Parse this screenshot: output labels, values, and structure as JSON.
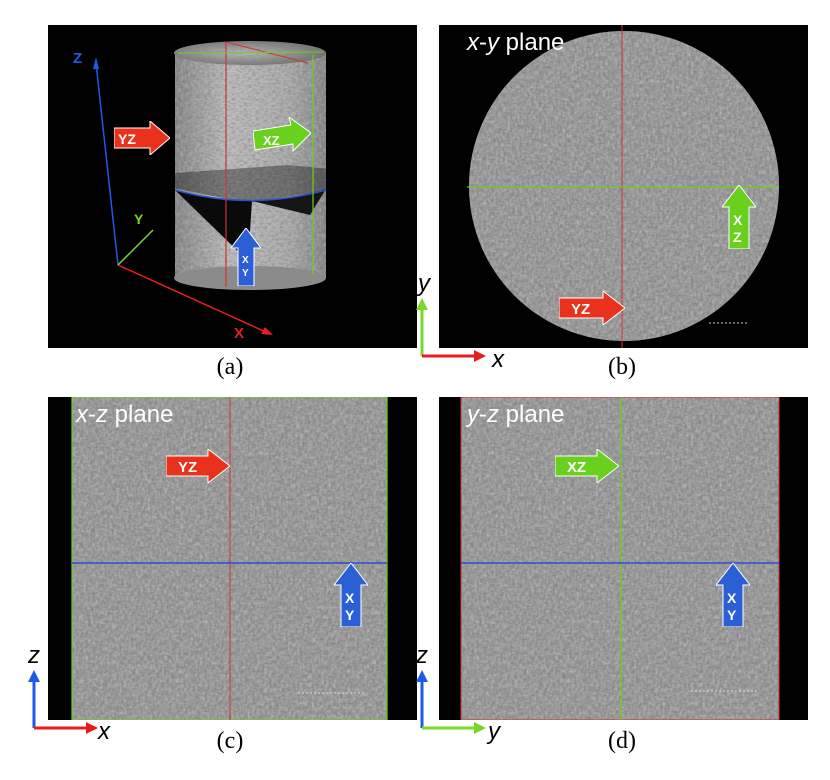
{
  "panels": {
    "a": {
      "caption": "(a)",
      "axis_z": "Z",
      "axis_y": "Y",
      "axis_x": "X",
      "arrow_yz": "YZ",
      "arrow_xz": "XZ",
      "arrow_xy_top": "X",
      "arrow_xy_bottom": "Y"
    },
    "b": {
      "caption": "(b)",
      "plane_x": "x",
      "plane_dash": "-",
      "plane_y": "y",
      "plane_word": " plane",
      "arrow_yz": "YZ",
      "arrow_xz_top": "X",
      "arrow_xz_bottom": "Z",
      "axis_vertical": "y",
      "axis_horizontal": "x"
    },
    "c": {
      "caption": "(c)",
      "plane_x": "x",
      "plane_dash": "-",
      "plane_z": "z",
      "plane_word": " plane",
      "arrow_yz": "YZ",
      "arrow_xy_top": "X",
      "arrow_xy_bottom": "Y",
      "axis_vertical": "z",
      "axis_horizontal": "x"
    },
    "d": {
      "caption": "(d)",
      "plane_y": "y",
      "plane_dash": "-",
      "plane_z": "z",
      "plane_word": " plane",
      "arrow_xz": "XZ",
      "arrow_xy_top": "X",
      "arrow_xy_bottom": "Y",
      "axis_vertical": "z",
      "axis_horizontal": "y"
    }
  },
  "colors": {
    "red": "#e8321e",
    "green": "#6ad01e",
    "blue": "#2a5fd6",
    "axis_red": "#e81e1e",
    "axis_green": "#7ad82a",
    "axis_blue": "#1e5ae8",
    "texture": "#8e8e8e"
  }
}
